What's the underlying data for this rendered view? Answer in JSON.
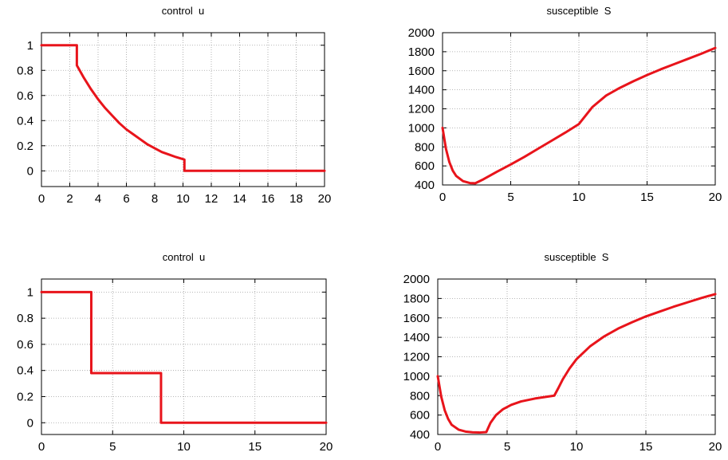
{
  "colors": {
    "line": "#e8141b",
    "grid": "#a0a0a0",
    "axis": "#000000"
  },
  "chart_data": [
    {
      "type": "line",
      "title": "control  u",
      "xlim": [
        0,
        20
      ],
      "ylim": [
        -0.125,
        1.1
      ],
      "xticks": [
        0,
        2,
        4,
        6,
        8,
        10,
        12,
        14,
        16,
        18,
        20
      ],
      "yticks": [
        0,
        0.2,
        0.4,
        0.6,
        0.8,
        1
      ],
      "grid": true,
      "series": [
        {
          "x": [
            0,
            2.5,
            2.5,
            2.6,
            3,
            3.5,
            4,
            4.5,
            5,
            5.5,
            6,
            6.5,
            7,
            7.5,
            8,
            8.5,
            9,
            9.5,
            10.1,
            10.1,
            20
          ],
          "y": [
            1,
            1,
            0.84,
            0.82,
            0.74,
            0.65,
            0.57,
            0.5,
            0.44,
            0.38,
            0.33,
            0.29,
            0.25,
            0.21,
            0.18,
            0.15,
            0.13,
            0.11,
            0.09,
            0,
            0
          ]
        }
      ]
    },
    {
      "type": "line",
      "title": "susceptible  S",
      "xlim": [
        0,
        20
      ],
      "ylim": [
        400,
        2000
      ],
      "xticks": [
        0,
        5,
        10,
        15,
        20
      ],
      "yticks": [
        400,
        600,
        800,
        1000,
        1200,
        1400,
        1600,
        1800,
        2000
      ],
      "grid": true,
      "series": [
        {
          "x": [
            0,
            0.25,
            0.5,
            0.75,
            1,
            1.5,
            2,
            2.4,
            3,
            4,
            5,
            6,
            7,
            8,
            9,
            10,
            10.5,
            11,
            12,
            13,
            14,
            15,
            16,
            17,
            18,
            19,
            20
          ],
          "y": [
            1000,
            780,
            640,
            550,
            495,
            440,
            420,
            418,
            460,
            540,
            615,
            695,
            780,
            865,
            950,
            1040,
            1130,
            1220,
            1340,
            1420,
            1490,
            1555,
            1615,
            1670,
            1725,
            1780,
            1840
          ]
        }
      ]
    },
    {
      "type": "line",
      "title": "control  u",
      "xlim": [
        0,
        20
      ],
      "ylim": [
        -0.09,
        1.1
      ],
      "xticks": [
        0,
        5,
        10,
        15,
        20
      ],
      "yticks": [
        0,
        0.2,
        0.4,
        0.6,
        0.8,
        1
      ],
      "grid": true,
      "series": [
        {
          "x": [
            0,
            3.5,
            3.5,
            8.4,
            8.4,
            20
          ],
          "y": [
            1,
            1,
            0.38,
            0.38,
            0,
            0
          ]
        }
      ]
    },
    {
      "type": "line",
      "title": "susceptible  S",
      "xlim": [
        0,
        20
      ],
      "ylim": [
        400,
        2000
      ],
      "xticks": [
        0,
        5,
        10,
        15,
        20
      ],
      "yticks": [
        400,
        600,
        800,
        1000,
        1200,
        1400,
        1600,
        1800,
        2000
      ],
      "grid": true,
      "series": [
        {
          "x": [
            0,
            0.25,
            0.5,
            0.75,
            1,
            1.5,
            2,
            2.5,
            3,
            3.5,
            3.8,
            4.2,
            4.7,
            5.3,
            6,
            7,
            8.4,
            8.7,
            9,
            9.5,
            10,
            11,
            12,
            13,
            14,
            15,
            16,
            17,
            18,
            19,
            20
          ],
          "y": [
            1000,
            790,
            650,
            560,
            500,
            450,
            430,
            423,
            420,
            425,
            520,
            600,
            660,
            705,
            740,
            770,
            800,
            880,
            965,
            1080,
            1175,
            1310,
            1410,
            1490,
            1555,
            1615,
            1665,
            1715,
            1760,
            1805,
            1845
          ]
        }
      ]
    }
  ]
}
